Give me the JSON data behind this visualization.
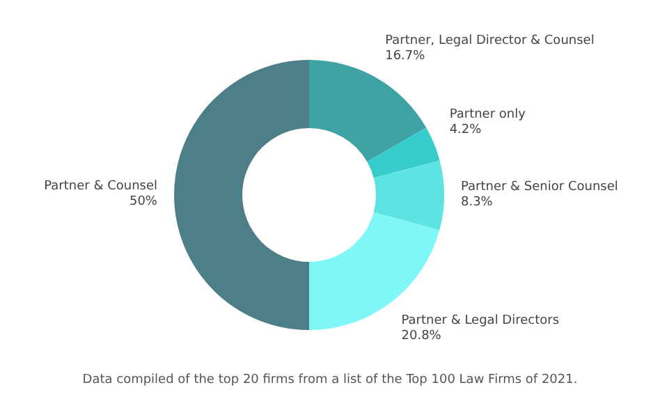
{
  "chart_data": {
    "type": "donut",
    "categories": [
      "Partner, Legal Director & Counsel",
      "Partner only",
      "Partner & Senior Counsel",
      "Partner & Legal Directors",
      "Partner & Counsel"
    ],
    "values": [
      16.7,
      4.2,
      8.3,
      20.8,
      50
    ],
    "value_labels": [
      "16.7%",
      "4.2%",
      "8.3%",
      "20.8%",
      "50%"
    ],
    "colors": [
      "#3fa3a3",
      "#36cccc",
      "#5ee3e3",
      "#80f7f7",
      "#4d7f88"
    ],
    "legend": false,
    "annotations": [
      "Data compiled of the top 20 firms from a list of the Top 100 Law Firms of 2021."
    ]
  }
}
